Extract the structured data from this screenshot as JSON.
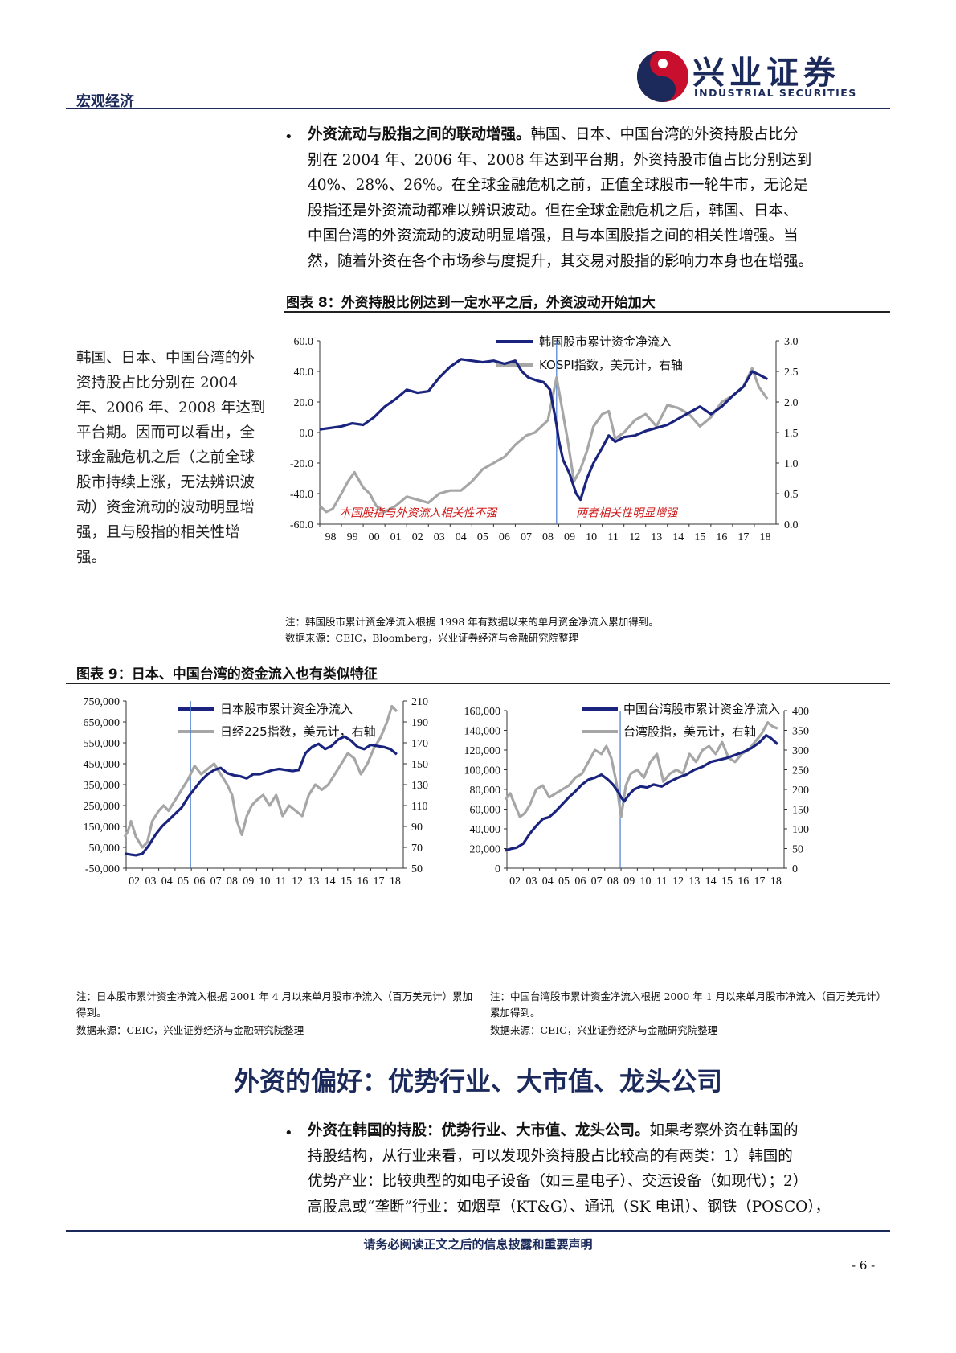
{
  "header": {
    "section": "宏观经济",
    "logo_cn": "兴业证券",
    "logo_en": "INDUSTRIAL SECURITIES"
  },
  "para1": {
    "bullet": "•",
    "bold": "外资流动与股指之间的联动增强。",
    "lines": [
      "韩国、日本、中国台湾的外资持股占比分",
      "别在 2004 年、2006 年、2008 年达到平台期，外资持股市值占比分别达到",
      "40%、28%、26%。在全球金融危机之前，正值全球股市一轮牛市，无论是",
      "股指还是外资流动都难以辨识波动。但在全球金融危机之后，韩国、日本、",
      "中国台湾的外资流动的波动明显增强，且与本国股指之间的相关性增强。当",
      "然，随着外资在各个市场参与度提升，其交易对股指的影响力本身也在增强。"
    ]
  },
  "fig8": {
    "title": "图表 8：外资持股比例达到一定水平之后，外资波动开始加大",
    "side_text": "韩国、日本、中国台湾的外资持股占比分别在 2004 年、2006 年、2008 年达到平台期。因而可以看出，全球金融危机之后（之前全球股市持续上涨，无法辨识波动）资金流动的波动明显增强，且与股指的相关性增强。",
    "note1": "注：韩国股市累计资金净流入根据 1998 年有数据以来的单月资金净流入累加得到。",
    "note2": "数据来源：CEIC，Bloomberg，兴业证券经济与金融研究院整理"
  },
  "fig9": {
    "title": "图表 9：日本、中国台湾的资金流入也有类似特征",
    "note_left": "注：日本股市累计资金净流入根据 2001 年 4 月以来单月股市净流入（百万美元计）累加得到。",
    "note_right": "注：中国台湾股市累计资金净流入根据 2000 年 1 月以来单月股市净流入（百万美元计）累加得到。",
    "source_left": "数据来源：CEIC，兴业证券经济与金融研究院整理",
    "source_right": "数据来源：CEIC，兴业证券经济与金融研究院整理"
  },
  "section_title": "外资的偏好：优势行业、大市值、龙头公司",
  "para2": {
    "bullet": "•",
    "bold": "外资在韩国的持股：优势行业、大市值、龙头公司。",
    "lines": [
      "如果考察外资在韩国的",
      "持股结构，从行业来看，可以发现外资持股占比较高的有两类：1）韩国的",
      "优势产业：比较典型的如电子设备（如三星电子）、交运设备（如现代）；2）",
      "高股息或“垄断”行业：如烟草（KT&G）、通讯（SK 电讯）、钢铁（POSCO），"
    ]
  },
  "footer": {
    "disclaimer": "请务必阅读正文之后的信息披露和重要声明",
    "page": "- 6 -"
  },
  "colors": {
    "navy": "#1a237e",
    "grey": "#a6a6a6",
    "vline": "#4a7bd0",
    "brand": "#1b2a5a",
    "red": "#d01818"
  },
  "chart_data": [
    {
      "id": "korea",
      "type": "line",
      "x_ticks": [
        "98",
        "99",
        "00",
        "01",
        "02",
        "03",
        "04",
        "05",
        "06",
        "07",
        "08",
        "09",
        "10",
        "11",
        "12",
        "13",
        "14",
        "15",
        "16",
        "17",
        "18"
      ],
      "y_left_ticks": [
        "60.0",
        "40.0",
        "20.0",
        "0.0",
        "-20.0",
        "-40.0",
        "-60.0"
      ],
      "y_left_range": [
        -60,
        60
      ],
      "y_right_ticks": [
        "3.0",
        "2.5",
        "2.0",
        "1.5",
        "1.0",
        "0.5",
        "0.0"
      ],
      "y_right_range": [
        0,
        3
      ],
      "vline_x": 2008.9,
      "annotations": [
        "本国股指与外资流入相关性不强",
        "两者相关性明显增强"
      ],
      "series": [
        {
          "name": "韩国股市累计资金净流入",
          "axis": "left",
          "color": "navy",
          "x": [
            1998,
            1998.5,
            1999,
            1999.5,
            2000,
            2000.5,
            2001,
            2001.5,
            2002,
            2002.5,
            2003,
            2003.5,
            2004,
            2004.5,
            2005,
            2005.5,
            2006,
            2006.5,
            2007,
            2007.3,
            2007.6,
            2008,
            2008.3,
            2008.6,
            2008.9,
            2009.0,
            2009.2,
            2009.5,
            2009.8,
            2010,
            2010.3,
            2010.6,
            2011,
            2011.3,
            2011.6,
            2012,
            2012.5,
            2013,
            2013.5,
            2014,
            2014.5,
            2015,
            2015.5,
            2016,
            2016.5,
            2017,
            2017.5,
            2017.9,
            2018.2,
            2018.6
          ],
          "y": [
            2,
            3,
            4,
            6,
            5,
            10,
            17,
            22,
            28,
            26,
            27,
            36,
            43,
            48,
            47,
            46,
            47,
            45,
            47,
            40,
            36,
            34,
            33,
            28,
            5,
            -5,
            -18,
            -27,
            -40,
            -44,
            -30,
            -20,
            -10,
            -2,
            -6,
            -3,
            -2,
            1,
            3,
            5,
            9,
            13,
            17,
            12,
            17,
            24,
            30,
            40,
            38,
            35
          ]
        },
        {
          "name": "KOSPI指数，美元计，右轴",
          "axis": "right",
          "color": "grey",
          "x": [
            1998,
            1998.3,
            1998.6,
            1999,
            1999.3,
            1999.6,
            2000,
            2000.3,
            2000.6,
            2001,
            2001.5,
            2002,
            2002.5,
            2003,
            2003.5,
            2004,
            2004.5,
            2005,
            2005.5,
            2006,
            2006.5,
            2007,
            2007.5,
            2007.9,
            2008.2,
            2008.5,
            2008.9,
            2009.1,
            2009.4,
            2009.7,
            2010,
            2010.3,
            2010.6,
            2011,
            2011.3,
            2011.6,
            2012,
            2012.5,
            2013,
            2013.5,
            2014,
            2014.5,
            2015,
            2015.5,
            2016,
            2016.5,
            2017,
            2017.5,
            2017.9,
            2018.2,
            2018.6
          ],
          "y": [
            0.3,
            0.2,
            0.25,
            0.5,
            0.7,
            0.85,
            0.6,
            0.5,
            0.3,
            0.2,
            0.3,
            0.45,
            0.4,
            0.35,
            0.5,
            0.55,
            0.55,
            0.7,
            0.9,
            1.0,
            1.1,
            1.3,
            1.45,
            1.5,
            1.6,
            1.7,
            2.4,
            2.0,
            1.4,
            0.7,
            0.9,
            1.2,
            1.6,
            1.8,
            1.85,
            1.4,
            1.5,
            1.7,
            1.8,
            1.6,
            1.95,
            1.9,
            1.8,
            1.6,
            1.75,
            2.0,
            2.1,
            2.25,
            2.55,
            2.25,
            2.05
          ]
        }
      ]
    },
    {
      "id": "japan",
      "type": "line",
      "x_ticks": [
        "02",
        "03",
        "04",
        "05",
        "06",
        "07",
        "08",
        "09",
        "10",
        "11",
        "12",
        "13",
        "14",
        "15",
        "16",
        "17",
        "18"
      ],
      "y_left_ticks": [
        "750,000",
        "650,000",
        "550,000",
        "450,000",
        "350,000",
        "250,000",
        "150,000",
        "50,000",
        "-50,000"
      ],
      "y_left_range": [
        -50000,
        750000
      ],
      "y_right_ticks": [
        "210",
        "190",
        "170",
        "150",
        "130",
        "110",
        "90",
        "70",
        "50"
      ],
      "y_right_range": [
        50,
        210
      ],
      "vline_x": 2005.95,
      "series": [
        {
          "name": "日本股市累计资金净流入",
          "axis": "left",
          "color": "navy",
          "x": [
            2001.9,
            2002.3,
            2002.6,
            2003,
            2003.4,
            2003.8,
            2004.2,
            2004.6,
            2005,
            2005.4,
            2005.8,
            2006.2,
            2006.6,
            2007,
            2007.4,
            2007.8,
            2008.2,
            2008.6,
            2009,
            2009.4,
            2009.8,
            2010.2,
            2010.6,
            2011,
            2011.4,
            2011.8,
            2012.2,
            2012.6,
            2013,
            2013.4,
            2013.8,
            2014.2,
            2014.6,
            2015,
            2015.4,
            2015.8,
            2016.2,
            2016.6,
            2017,
            2017.4,
            2017.8,
            2018.2,
            2018.6
          ],
          "y": [
            20000,
            15000,
            12000,
            20000,
            60000,
            110000,
            150000,
            180000,
            210000,
            240000,
            290000,
            330000,
            370000,
            400000,
            420000,
            430000,
            405000,
            395000,
            390000,
            380000,
            400000,
            400000,
            410000,
            420000,
            425000,
            420000,
            415000,
            420000,
            500000,
            530000,
            545000,
            520000,
            535000,
            565000,
            580000,
            560000,
            530000,
            520000,
            540000,
            535000,
            530000,
            520000,
            495000
          ]
        },
        {
          "name": "日经225指数，美元计，右轴",
          "axis": "right",
          "color": "grey",
          "x": [
            2001.9,
            2002.1,
            2002.3,
            2002.6,
            2003,
            2003.3,
            2003.6,
            2004,
            2004.3,
            2004.6,
            2005,
            2005.4,
            2005.8,
            2006.2,
            2006.6,
            2007,
            2007.4,
            2007.8,
            2008.2,
            2008.5,
            2008.8,
            2009.1,
            2009.4,
            2009.7,
            2010,
            2010.4,
            2010.8,
            2011.2,
            2011.6,
            2012,
            2012.4,
            2012.8,
            2013.2,
            2013.6,
            2014,
            2014.4,
            2014.8,
            2015.2,
            2015.6,
            2016,
            2016.4,
            2016.8,
            2017.2,
            2017.6,
            2018,
            2018.3,
            2018.6
          ],
          "y": [
            80,
            85,
            95,
            80,
            70,
            75,
            95,
            105,
            110,
            105,
            115,
            125,
            135,
            148,
            140,
            145,
            150,
            140,
            130,
            120,
            95,
            82,
            100,
            110,
            115,
            120,
            110,
            120,
            100,
            110,
            105,
            100,
            120,
            130,
            125,
            130,
            140,
            150,
            160,
            155,
            140,
            150,
            165,
            175,
            190,
            205,
            200
          ]
        }
      ]
    },
    {
      "id": "taiwan",
      "type": "line",
      "x_ticks": [
        "02",
        "03",
        "04",
        "05",
        "06",
        "07",
        "08",
        "09",
        "10",
        "11",
        "12",
        "13",
        "14",
        "15",
        "16",
        "17",
        "18"
      ],
      "y_left_ticks": [
        "160,000",
        "140,000",
        "120,000",
        "100,000",
        "80,000",
        "60,000",
        "40,000",
        "20,000",
        "0"
      ],
      "y_left_range": [
        0,
        160000
      ],
      "y_right_ticks": [
        "400",
        "350",
        "300",
        "250",
        "200",
        "150",
        "100",
        "50",
        "0"
      ],
      "y_right_range": [
        0,
        400
      ],
      "vline_x": 2008.95,
      "series": [
        {
          "name": "中国台湾股市累计资金净流入",
          "axis": "left",
          "color": "navy",
          "x": [
            2001.9,
            2002.3,
            2002.6,
            2003,
            2003.4,
            2003.8,
            2004.2,
            2004.6,
            2005,
            2005.4,
            2005.8,
            2006.2,
            2006.6,
            2007,
            2007.4,
            2007.8,
            2008.2,
            2008.5,
            2008.8,
            2009,
            2009.2,
            2009.5,
            2009.8,
            2010.2,
            2010.6,
            2011,
            2011.5,
            2012,
            2012.5,
            2013,
            2013.5,
            2014,
            2014.5,
            2015,
            2015.5,
            2016,
            2016.5,
            2017,
            2017.5,
            2017.9,
            2018.2,
            2018.6
          ],
          "y": [
            18000,
            20000,
            21000,
            25000,
            35000,
            43000,
            50000,
            52000,
            58000,
            65000,
            72000,
            78000,
            85000,
            90000,
            92000,
            95000,
            90000,
            85000,
            78000,
            72000,
            68000,
            75000,
            80000,
            83000,
            82000,
            85000,
            83000,
            88000,
            92000,
            95000,
            100000,
            103000,
            108000,
            110000,
            112000,
            115000,
            118000,
            122000,
            128000,
            135000,
            132000,
            126000
          ]
        },
        {
          "name": "台湾股指，美元计，右轴",
          "axis": "right",
          "color": "grey",
          "x": [
            2001.9,
            2002.2,
            2002.5,
            2002.8,
            2003.1,
            2003.4,
            2003.8,
            2004.2,
            2004.6,
            2005,
            2005.4,
            2005.8,
            2006.2,
            2006.6,
            2007,
            2007.4,
            2007.8,
            2008.1,
            2008.4,
            2008.7,
            2009,
            2009.3,
            2009.6,
            2010,
            2010.4,
            2010.8,
            2011.2,
            2011.6,
            2012,
            2012.4,
            2012.8,
            2013.2,
            2013.6,
            2014,
            2014.4,
            2014.8,
            2015.2,
            2015.6,
            2016,
            2016.4,
            2016.8,
            2017.2,
            2017.6,
            2018,
            2018.3,
            2018.6
          ],
          "y": [
            175,
            190,
            160,
            130,
            140,
            160,
            200,
            210,
            180,
            190,
            200,
            210,
            230,
            240,
            270,
            300,
            290,
            310,
            280,
            220,
            130,
            210,
            240,
            250,
            230,
            270,
            290,
            220,
            240,
            250,
            240,
            290,
            270,
            300,
            310,
            290,
            320,
            280,
            270,
            290,
            300,
            320,
            340,
            370,
            360,
            355
          ]
        }
      ]
    }
  ]
}
